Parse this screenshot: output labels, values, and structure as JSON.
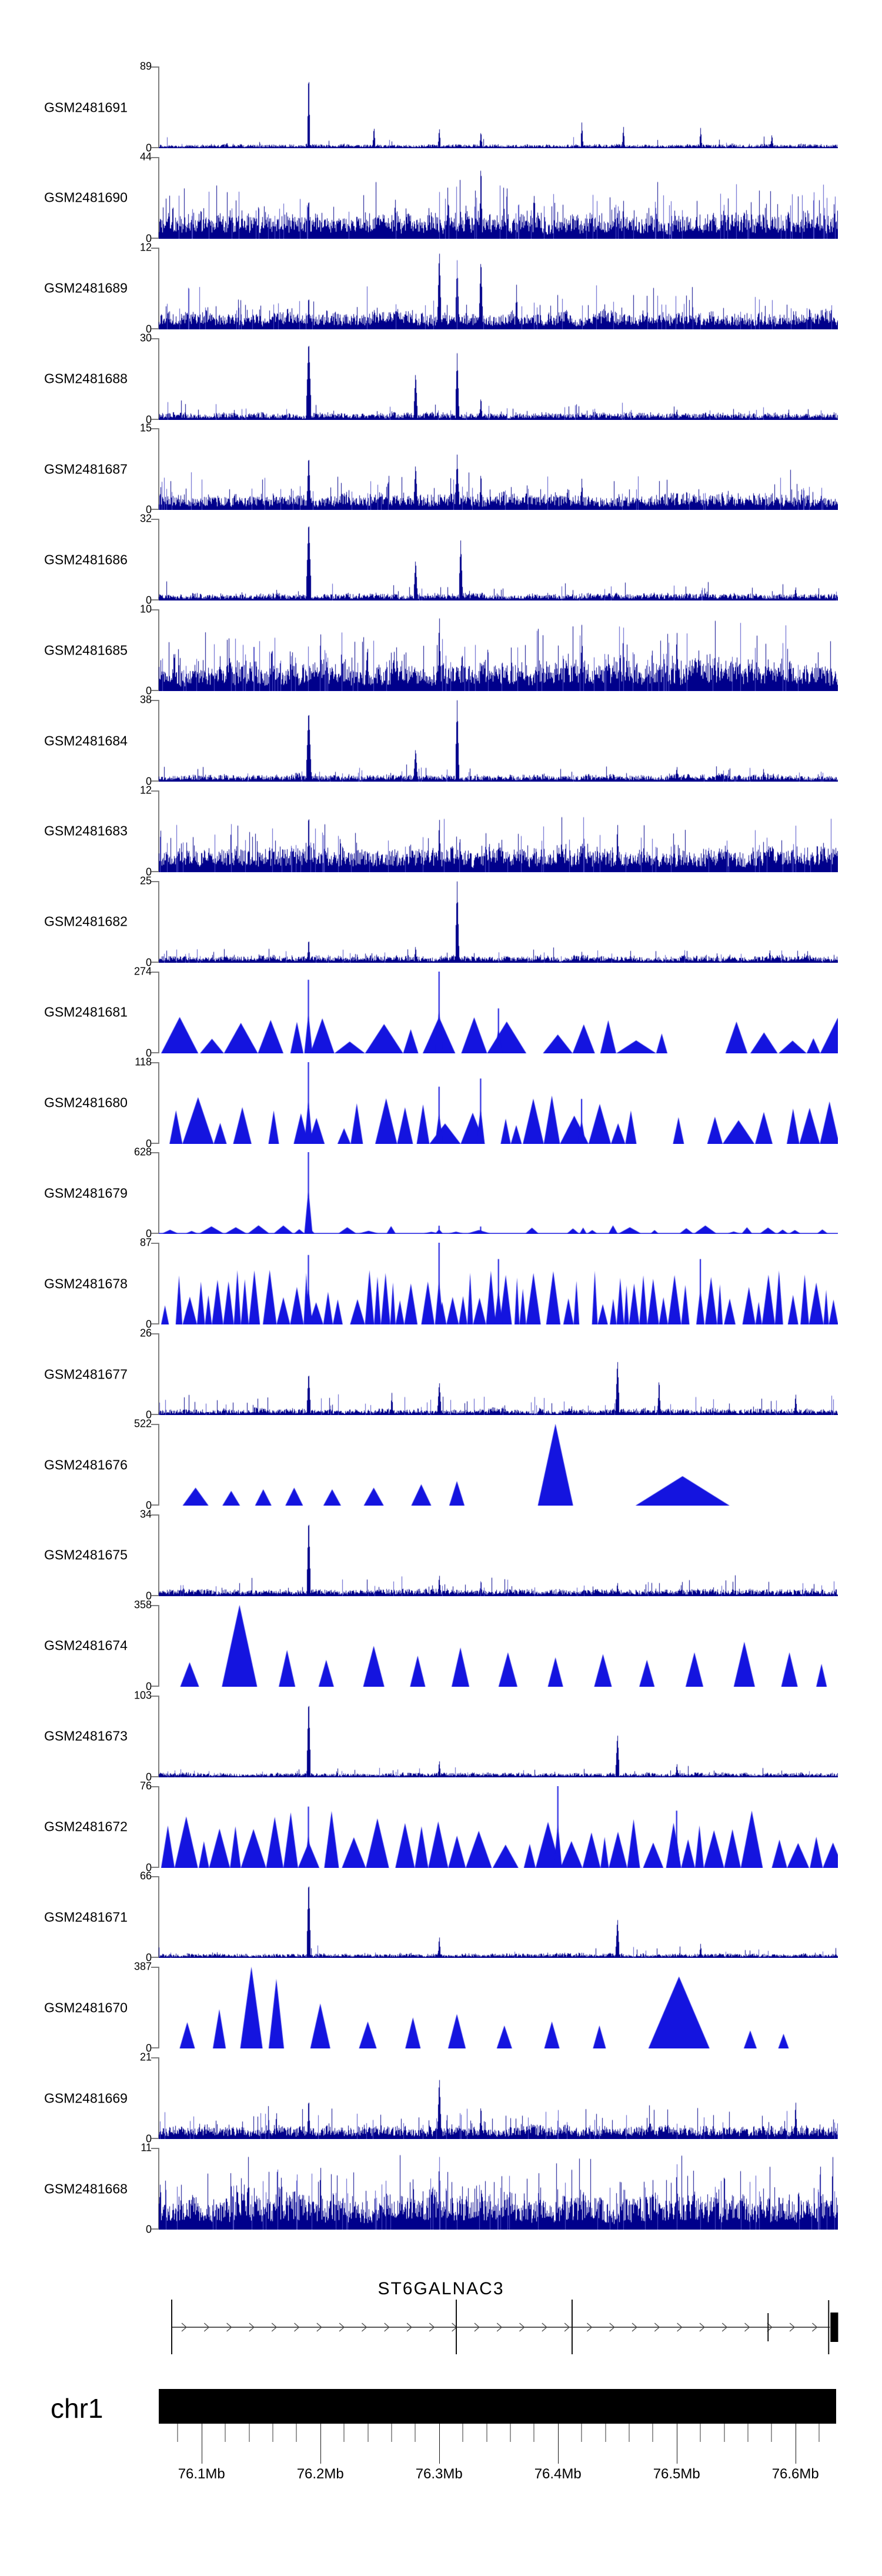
{
  "figure": {
    "background": "#ffffff"
  },
  "chart_data": {
    "type": "area",
    "title": "",
    "description": "Stacked genome-browser coverage tracks for 24 GEO samples over chr1:76.06-76.64 Mb with ST6GALNAC3 gene model, chromosome bar and genomic axis",
    "region": {
      "chromosome": "chr1",
      "start_mb": 76.064,
      "end_mb": 76.636,
      "unit": "Mb"
    },
    "colors": {
      "hist": "#00008B",
      "hist_light": "#5050c8",
      "peaks": "#1414DF",
      "spine": "#7f7f7f",
      "axis_major": "#1a1a1a",
      "axis_minor": "#999999",
      "ideogram": "#000000",
      "gene": "#222222"
    },
    "tracks": [
      {
        "label": "GSM2481691",
        "ymax": "89",
        "ymin": "0",
        "style": "hist",
        "base": 0.045,
        "spike_prob": 0.02,
        "spike_amp": 0.12,
        "spikes": [
          [
            76.19,
            1,
            2
          ],
          [
            76.245,
            0.28,
            2
          ],
          [
            76.3,
            0.26,
            2
          ],
          [
            76.335,
            0.22,
            2
          ],
          [
            76.42,
            0.33,
            2
          ],
          [
            76.455,
            0.28,
            2
          ],
          [
            76.52,
            0.26,
            2
          ],
          [
            76.58,
            0.18,
            2
          ]
        ]
      },
      {
        "label": "GSM2481690",
        "ymax": "44",
        "ymin": "0",
        "style": "hist",
        "base": 0.3,
        "spike_prob": 0.12,
        "spike_amp": 0.45,
        "spikes": [
          [
            76.335,
            1,
            2
          ],
          [
            76.19,
            0.55,
            2
          ],
          [
            76.38,
            0.6,
            2
          ],
          [
            76.455,
            0.5,
            2
          ],
          [
            76.55,
            0.45,
            2
          ]
        ]
      },
      {
        "label": "GSM2481689",
        "ymax": "12",
        "ymin": "0",
        "style": "hist",
        "base": 0.2,
        "spike_prob": 0.08,
        "spike_amp": 0.35,
        "spikes": [
          [
            76.3,
            1,
            3
          ],
          [
            76.315,
            0.85,
            3
          ],
          [
            76.335,
            0.9,
            3
          ],
          [
            76.19,
            0.45,
            2
          ],
          [
            76.365,
            0.55,
            2
          ]
        ]
      },
      {
        "label": "GSM2481688",
        "ymax": "30",
        "ymin": "0",
        "style": "hist",
        "base": 0.08,
        "spike_prob": 0.04,
        "spike_amp": 0.18,
        "spikes": [
          [
            76.19,
            1,
            4
          ],
          [
            76.28,
            0.6,
            3
          ],
          [
            76.315,
            0.82,
            3
          ],
          [
            76.335,
            0.3,
            2
          ],
          [
            76.5,
            0.14,
            2
          ]
        ]
      },
      {
        "label": "GSM2481687",
        "ymax": "15",
        "ymin": "0",
        "style": "hist",
        "base": 0.18,
        "spike_prob": 0.07,
        "spike_amp": 0.3,
        "spikes": [
          [
            76.19,
            0.7,
            3
          ],
          [
            76.28,
            0.58,
            3
          ],
          [
            76.315,
            0.68,
            3
          ],
          [
            76.335,
            0.5,
            2
          ],
          [
            76.42,
            0.4,
            2
          ]
        ]
      },
      {
        "label": "GSM2481686",
        "ymax": "32",
        "ymin": "0",
        "style": "hist",
        "base": 0.08,
        "spike_prob": 0.04,
        "spike_amp": 0.18,
        "spikes": [
          [
            76.19,
            1,
            4
          ],
          [
            76.28,
            0.52,
            3
          ],
          [
            76.318,
            0.75,
            3
          ],
          [
            76.6,
            0.18,
            2
          ]
        ]
      },
      {
        "label": "GSM2481685",
        "ymax": "10",
        "ymin": "0",
        "style": "hist",
        "base": 0.34,
        "spike_prob": 0.14,
        "spike_amp": 0.5,
        "spikes": [
          [
            76.3,
            1,
            2
          ],
          [
            76.2,
            0.78,
            2
          ],
          [
            76.42,
            0.85,
            2
          ],
          [
            76.5,
            0.8,
            2
          ]
        ]
      },
      {
        "label": "GSM2481684",
        "ymax": "38",
        "ymin": "0",
        "style": "hist",
        "base": 0.08,
        "spike_prob": 0.035,
        "spike_amp": 0.16,
        "spikes": [
          [
            76.19,
            0.9,
            4
          ],
          [
            76.28,
            0.42,
            3
          ],
          [
            76.315,
            1,
            3
          ],
          [
            76.5,
            0.2,
            2
          ]
        ]
      },
      {
        "label": "GSM2481683",
        "ymax": "12",
        "ymin": "0",
        "style": "hist",
        "base": 0.28,
        "spike_prob": 0.1,
        "spike_amp": 0.4,
        "spikes": [
          [
            76.19,
            0.8,
            2
          ],
          [
            76.3,
            0.72,
            2
          ],
          [
            76.45,
            0.65,
            2
          ]
        ]
      },
      {
        "label": "GSM2481682",
        "ymax": "25",
        "ymin": "0",
        "style": "hist",
        "base": 0.08,
        "spike_prob": 0.04,
        "spike_amp": 0.14,
        "spikes": [
          [
            76.315,
            1,
            3
          ],
          [
            76.19,
            0.32,
            2
          ],
          [
            76.28,
            0.22,
            2
          ],
          [
            76.42,
            0.14,
            2
          ]
        ]
      },
      {
        "label": "GSM2481681",
        "ymax": "274",
        "ymin": "0",
        "style": "peaks",
        "pbase": 0.12,
        "pvar": 0.38,
        "gap": 0.22,
        "wmin": 18,
        "wmax": 70,
        "spikes": [
          [
            76.3,
            1
          ],
          [
            76.19,
            0.9
          ],
          [
            76.35,
            0.55
          ]
        ]
      },
      {
        "label": "GSM2481680",
        "ymax": "118",
        "ymin": "0",
        "style": "peaks",
        "pbase": 0.18,
        "pvar": 0.42,
        "gap": 0.18,
        "wmin": 15,
        "wmax": 55,
        "spikes": [
          [
            76.19,
            1
          ],
          [
            76.335,
            0.8
          ],
          [
            76.3,
            0.7
          ],
          [
            76.42,
            0.55
          ]
        ]
      },
      {
        "label": "GSM2481679",
        "ymax": "628",
        "ymin": "0",
        "style": "flat",
        "pbase": 0.025,
        "pvar": 0.08,
        "gap": 0.3,
        "wmin": 12,
        "wmax": 45,
        "spikes": [
          [
            76.19,
            1
          ],
          [
            76.3,
            0.1
          ],
          [
            76.335,
            0.09
          ]
        ]
      },
      {
        "label": "GSM2481678",
        "ymax": "87",
        "ymin": "0",
        "style": "peaks",
        "pbase": 0.22,
        "pvar": 0.45,
        "gap": 0.12,
        "wmin": 8,
        "wmax": 26,
        "spikes": [
          [
            76.19,
            0.85
          ],
          [
            76.3,
            1
          ],
          [
            76.35,
            0.8
          ],
          [
            76.52,
            0.8
          ]
        ]
      },
      {
        "label": "GSM2481677",
        "ymax": "26",
        "ymin": "0",
        "style": "hist",
        "base": 0.07,
        "spike_prob": 0.05,
        "spike_amp": 0.22,
        "spikes": [
          [
            76.19,
            0.55,
            3
          ],
          [
            76.26,
            0.28,
            2
          ],
          [
            76.3,
            0.42,
            3
          ],
          [
            76.45,
            0.7,
            3
          ],
          [
            76.485,
            0.48,
            2
          ],
          [
            76.6,
            0.28,
            2
          ]
        ]
      },
      {
        "label": "GSM2481676",
        "ymax": "522",
        "ymin": "0",
        "style": "peaks",
        "triangles": [
          [
            76.095,
            0.22,
            22
          ],
          [
            76.125,
            0.18,
            15
          ],
          [
            76.152,
            0.2,
            14
          ],
          [
            76.178,
            0.22,
            15
          ],
          [
            76.21,
            0.2,
            15
          ],
          [
            76.245,
            0.22,
            17
          ],
          [
            76.285,
            0.26,
            17
          ],
          [
            76.315,
            0.3,
            13
          ],
          [
            76.398,
            1,
            30
          ],
          [
            76.505,
            0.36,
            80
          ]
        ],
        "spikes": []
      },
      {
        "label": "GSM2481675",
        "ymax": "34",
        "ymin": "0",
        "style": "hist",
        "base": 0.08,
        "spike_prob": 0.05,
        "spike_amp": 0.18,
        "spikes": [
          [
            76.19,
            1,
            3
          ],
          [
            76.3,
            0.28,
            2
          ],
          [
            76.335,
            0.22,
            2
          ],
          [
            76.45,
            0.18,
            2
          ]
        ]
      },
      {
        "label": "GSM2481674",
        "ymax": "358",
        "ymin": "0",
        "style": "peaks",
        "triangles": [
          [
            76.09,
            0.3,
            16
          ],
          [
            76.132,
            1,
            30
          ],
          [
            76.172,
            0.45,
            14
          ],
          [
            76.205,
            0.33,
            13
          ],
          [
            76.245,
            0.5,
            18
          ],
          [
            76.282,
            0.38,
            13
          ],
          [
            76.318,
            0.48,
            15
          ],
          [
            76.358,
            0.42,
            16
          ],
          [
            76.398,
            0.36,
            13
          ],
          [
            76.438,
            0.4,
            15
          ],
          [
            76.475,
            0.33,
            13
          ],
          [
            76.515,
            0.42,
            15
          ],
          [
            76.557,
            0.55,
            18
          ],
          [
            76.595,
            0.42,
            14
          ],
          [
            76.622,
            0.28,
            9
          ]
        ],
        "spikes": []
      },
      {
        "label": "GSM2481673",
        "ymax": "103",
        "ymin": "0",
        "style": "hist",
        "base": 0.05,
        "spike_prob": 0.03,
        "spike_amp": 0.1,
        "spikes": [
          [
            76.19,
            1,
            3
          ],
          [
            76.3,
            0.22,
            2
          ],
          [
            76.45,
            0.55,
            3
          ],
          [
            76.5,
            0.18,
            2
          ]
        ]
      },
      {
        "label": "GSM2481672",
        "ymax": "76",
        "ymin": "0",
        "style": "peaks",
        "pbase": 0.28,
        "pvar": 0.42,
        "gap": 0.12,
        "wmin": 14,
        "wmax": 45,
        "spikes": [
          [
            76.4,
            1
          ],
          [
            76.19,
            0.75
          ],
          [
            76.5,
            0.7
          ]
        ]
      },
      {
        "label": "GSM2481671",
        "ymax": "66",
        "ymin": "0",
        "style": "hist",
        "base": 0.05,
        "spike_prob": 0.03,
        "spike_amp": 0.12,
        "spikes": [
          [
            76.19,
            1,
            3
          ],
          [
            76.3,
            0.28,
            2
          ],
          [
            76.45,
            0.5,
            3
          ],
          [
            76.52,
            0.18,
            2
          ]
        ]
      },
      {
        "label": "GSM2481670",
        "ymax": "387",
        "ymin": "0",
        "style": "peaks",
        "triangles": [
          [
            76.088,
            0.32,
            13
          ],
          [
            76.115,
            0.48,
            11
          ],
          [
            76.142,
            1,
            19
          ],
          [
            76.163,
            0.85,
            13
          ],
          [
            76.2,
            0.55,
            17
          ],
          [
            76.24,
            0.33,
            15
          ],
          [
            76.278,
            0.38,
            13
          ],
          [
            76.315,
            0.42,
            15
          ],
          [
            76.355,
            0.28,
            13
          ],
          [
            76.395,
            0.33,
            13
          ],
          [
            76.435,
            0.28,
            11
          ],
          [
            76.502,
            0.88,
            52
          ],
          [
            76.562,
            0.22,
            11
          ],
          [
            76.59,
            0.18,
            9
          ]
        ],
        "spikes": []
      },
      {
        "label": "GSM2481669",
        "ymax": "21",
        "ymin": "0",
        "style": "hist",
        "base": 0.15,
        "spike_prob": 0.07,
        "spike_amp": 0.3,
        "spikes": [
          [
            76.19,
            0.55,
            2
          ],
          [
            76.3,
            0.78,
            3
          ],
          [
            76.335,
            0.45,
            2
          ],
          [
            76.6,
            0.5,
            2
          ]
        ]
      },
      {
        "label": "GSM2481668",
        "ymax": "11",
        "ymin": "0",
        "style": "hist",
        "base": 0.4,
        "spike_prob": 0.15,
        "spike_amp": 0.5,
        "spikes": [
          [
            76.2,
            0.85,
            2
          ],
          [
            76.3,
            1,
            2
          ],
          [
            76.5,
            0.9,
            2
          ]
        ]
      }
    ],
    "gene": {
      "name": "ST6GALNAC3",
      "strand": "+",
      "line_start_mb": 76.0749,
      "line_end_mb": 76.629,
      "exons_tall_mb": [
        76.0749,
        76.3145,
        76.412
      ],
      "exons_medium_mb": [
        76.577
      ],
      "end_line_mb": 76.628,
      "end_box_mb": [
        76.6295,
        76.636
      ]
    },
    "ideogram": {
      "label": "chr1"
    },
    "axis": {
      "unit": "Mb",
      "major_ticks": [
        {
          "mb": 76.1,
          "label": "76.1Mb"
        },
        {
          "mb": 76.2,
          "label": "76.2Mb"
        },
        {
          "mb": 76.3,
          "label": "76.3Mb"
        },
        {
          "mb": 76.4,
          "label": "76.4Mb"
        },
        {
          "mb": 76.5,
          "label": "76.5Mb"
        },
        {
          "mb": 76.6,
          "label": "76.6Mb"
        }
      ],
      "minor_ticks_mb": [
        76.08,
        76.12,
        76.14,
        76.16,
        76.18,
        76.22,
        76.24,
        76.26,
        76.28,
        76.32,
        76.34,
        76.36,
        76.38,
        76.42,
        76.44,
        76.46,
        76.48,
        76.52,
        76.54,
        76.56,
        76.58,
        76.62
      ]
    }
  }
}
